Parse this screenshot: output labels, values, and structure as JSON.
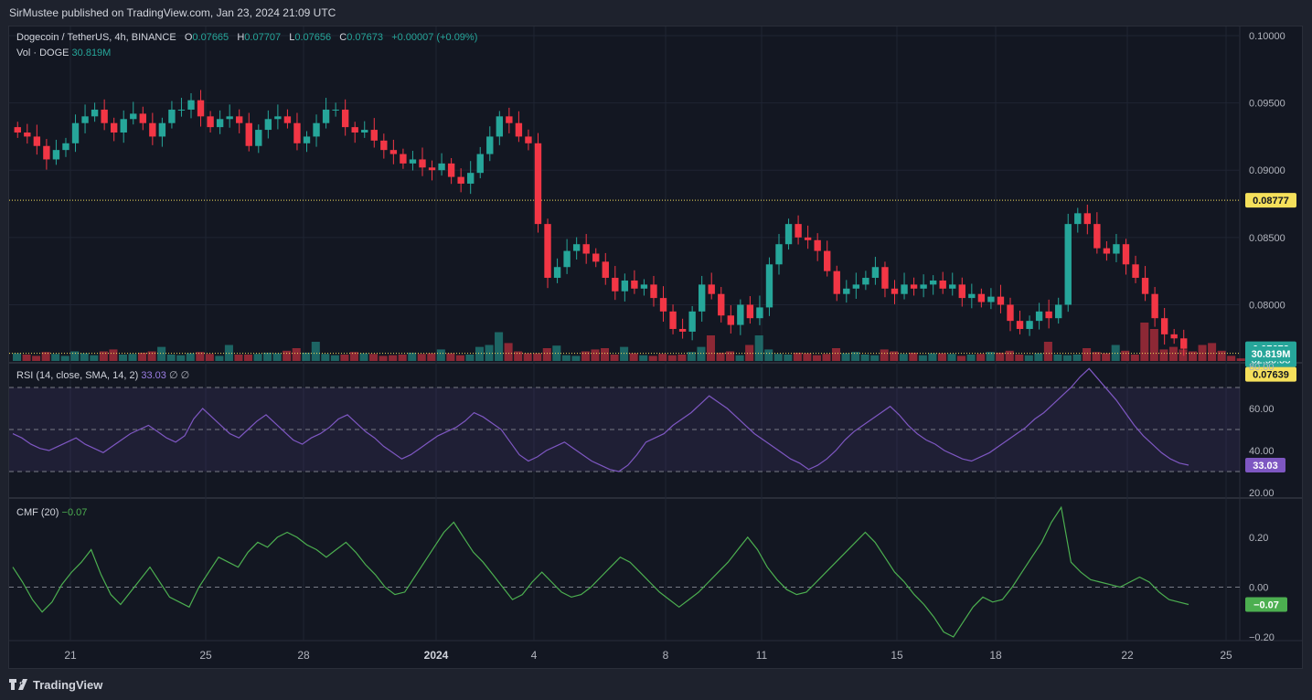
{
  "publisher": "SirMustee published on TradingView.com, Jan 23, 2024 21:09 UTC",
  "brand": "TradingView",
  "legend": {
    "symbol": "Dogecoin / TetherUS, 4h, BINANCE",
    "o_label": "O",
    "o": "0.07665",
    "h_label": "H",
    "h": "0.07707",
    "l_label": "L",
    "l": "0.07656",
    "c_label": "C",
    "c": "0.07673",
    "change": "+0.00007 (+0.09%)",
    "vol_label": "Vol · DOGE",
    "vol": "30.819M",
    "rsi_label": "RSI (14, close, SMA, 14, 2)",
    "rsi_value": "33.03",
    "rsi_extra": "∅ ∅",
    "cmf_label": "CMF (20)",
    "cmf_value": "−0.07"
  },
  "colors": {
    "up": "#26a69a",
    "down": "#f23645",
    "rsi": "#7e57c2",
    "cmf": "#4caf50",
    "level": "#f5e05b",
    "grid": "#1f2433",
    "text": "#b2b5be"
  },
  "chart_data": [
    {
      "type": "candlestick",
      "title": "Dogecoin / TetherUS, 4h, BINANCE",
      "x_tick_labels": [
        "21",
        "25",
        "28",
        "2024",
        "4",
        "8",
        "11",
        "15",
        "18",
        "22",
        "25"
      ],
      "y_ticks": [
        "0.10000",
        "0.09500",
        "0.09000",
        "0.08500",
        "0.08000"
      ],
      "ylim": [
        0.0765,
        0.1
      ],
      "horizontal_levels": [
        0.08777,
        0.07639
      ],
      "price_labels": {
        "resistance": "0.08777",
        "last": "0.07673",
        "countdown": "02:50:33",
        "support": "0.07639"
      },
      "close_path": [
        0.0928,
        0.0925,
        0.0918,
        0.0908,
        0.0915,
        0.092,
        0.0935,
        0.094,
        0.0945,
        0.0935,
        0.0928,
        0.0938,
        0.0942,
        0.0935,
        0.0925,
        0.0935,
        0.0945,
        0.0945,
        0.0952,
        0.094,
        0.0932,
        0.0938,
        0.094,
        0.0935,
        0.0918,
        0.093,
        0.0938,
        0.094,
        0.0935,
        0.092,
        0.0925,
        0.0935,
        0.0945,
        0.0945,
        0.0932,
        0.0928,
        0.093,
        0.0922,
        0.0915,
        0.0912,
        0.0905,
        0.0908,
        0.0902,
        0.09,
        0.0905,
        0.0895,
        0.089,
        0.0898,
        0.0912,
        0.0925,
        0.094,
        0.0935,
        0.0925,
        0.092,
        0.086,
        0.082,
        0.0828,
        0.084,
        0.0845,
        0.0838,
        0.0832,
        0.082,
        0.081,
        0.0818,
        0.0812,
        0.0815,
        0.0805,
        0.0795,
        0.0782,
        0.078,
        0.0795,
        0.0815,
        0.0808,
        0.0792,
        0.0785,
        0.08,
        0.079,
        0.0798,
        0.083,
        0.0845,
        0.086,
        0.085,
        0.0848,
        0.084,
        0.0825,
        0.0808,
        0.0812,
        0.0815,
        0.082,
        0.0828,
        0.0812,
        0.0808,
        0.0815,
        0.0812,
        0.0815,
        0.0818,
        0.0812,
        0.0815,
        0.0805,
        0.0808,
        0.0802,
        0.0806,
        0.08,
        0.0788,
        0.0782,
        0.0788,
        0.0795,
        0.079,
        0.08,
        0.086,
        0.0868,
        0.086,
        0.0842,
        0.0838,
        0.0845,
        0.083,
        0.082,
        0.0808,
        0.079,
        0.0778,
        0.0775,
        0.07673
      ]
    },
    {
      "type": "bar",
      "title": "Vol · DOGE",
      "last_value_label": "30.819M",
      "values": [
        12,
        10,
        8,
        14,
        11,
        8,
        15,
        12,
        9,
        15,
        18,
        10,
        11,
        13,
        15,
        22,
        10,
        9,
        12,
        14,
        11,
        8,
        25,
        10,
        10,
        11,
        13,
        12,
        16,
        20,
        13,
        30,
        11,
        9,
        10,
        14,
        12,
        11,
        8,
        9,
        10,
        13,
        11,
        12,
        18,
        12,
        9,
        10,
        22,
        25,
        45,
        28,
        15,
        12,
        12,
        20,
        24,
        9,
        8,
        15,
        18,
        20,
        10,
        22,
        12,
        9,
        8,
        11,
        9,
        10,
        14,
        22,
        40,
        13,
        15,
        9,
        25,
        40,
        18,
        11,
        10,
        13,
        12,
        9,
        11,
        20,
        12,
        14,
        10,
        9,
        18,
        15,
        11,
        13,
        9,
        12,
        12,
        11,
        8,
        10,
        11,
        14,
        13,
        16,
        10,
        9,
        12,
        30,
        10,
        9,
        10,
        20,
        14,
        12,
        25,
        16,
        10,
        60,
        50,
        18,
        22,
        18,
        15,
        25,
        28,
        16,
        8,
        4
      ]
    },
    {
      "type": "line",
      "title": "RSI (14, close, SMA, 14, 2)",
      "y_ticks": [
        "80.00",
        "60.00",
        "40.00",
        "20.00"
      ],
      "ylim": [
        20,
        80
      ],
      "bands": [
        70,
        50,
        30
      ],
      "last_value_label": "33.03",
      "values": [
        48,
        46,
        43,
        41,
        40,
        42,
        44,
        46,
        43,
        41,
        39,
        42,
        45,
        48,
        50,
        52,
        49,
        46,
        44,
        47,
        55,
        60,
        56,
        52,
        48,
        46,
        50,
        54,
        57,
        53,
        49,
        45,
        43,
        46,
        48,
        51,
        55,
        57,
        53,
        49,
        46,
        42,
        39,
        36,
        38,
        41,
        44,
        47,
        49,
        51,
        54,
        58,
        56,
        53,
        50,
        44,
        38,
        35,
        37,
        40,
        42,
        44,
        41,
        38,
        35,
        33,
        31,
        30,
        33,
        38,
        44,
        46,
        48,
        52,
        55,
        58,
        62,
        66,
        63,
        60,
        56,
        52,
        48,
        45,
        42,
        39,
        36,
        34,
        31,
        33,
        36,
        40,
        45,
        49,
        52,
        55,
        58,
        61,
        57,
        52,
        48,
        45,
        43,
        40,
        38,
        36,
        35,
        37,
        39,
        42,
        45,
        48,
        51,
        55,
        58,
        62,
        66,
        70,
        75,
        79,
        74,
        69,
        64,
        58,
        52,
        47,
        43,
        39,
        36,
        34,
        33.03
      ]
    },
    {
      "type": "line",
      "title": "CMF (20)",
      "y_ticks": [
        "0.20",
        "0.00",
        "−0.20"
      ],
      "ylim": [
        -0.2,
        0.35
      ],
      "last_value_label": "−0.07",
      "values": [
        0.08,
        0.02,
        -0.05,
        -0.1,
        -0.06,
        0.01,
        0.06,
        0.1,
        0.15,
        0.05,
        -0.03,
        -0.07,
        -0.02,
        0.03,
        0.08,
        0.02,
        -0.04,
        -0.06,
        -0.08,
        0.0,
        0.06,
        0.12,
        0.1,
        0.08,
        0.14,
        0.18,
        0.16,
        0.2,
        0.22,
        0.2,
        0.17,
        0.15,
        0.12,
        0.15,
        0.18,
        0.14,
        0.09,
        0.05,
        0.0,
        -0.03,
        -0.02,
        0.04,
        0.1,
        0.16,
        0.22,
        0.26,
        0.2,
        0.14,
        0.1,
        0.05,
        0.0,
        -0.05,
        -0.03,
        0.02,
        0.06,
        0.02,
        -0.02,
        -0.04,
        -0.03,
        0.0,
        0.04,
        0.08,
        0.12,
        0.1,
        0.06,
        0.02,
        -0.02,
        -0.05,
        -0.08,
        -0.05,
        -0.02,
        0.02,
        0.06,
        0.1,
        0.15,
        0.2,
        0.15,
        0.08,
        0.03,
        -0.01,
        -0.03,
        -0.02,
        0.02,
        0.06,
        0.1,
        0.14,
        0.18,
        0.22,
        0.18,
        0.12,
        0.06,
        0.02,
        -0.03,
        -0.07,
        -0.12,
        -0.18,
        -0.2,
        -0.14,
        -0.08,
        -0.04,
        -0.06,
        -0.05,
        0.0,
        0.06,
        0.12,
        0.18,
        0.26,
        0.32,
        0.1,
        0.06,
        0.03,
        0.02,
        0.01,
        0.0,
        0.02,
        0.04,
        0.02,
        -0.02,
        -0.05,
        -0.06,
        -0.07
      ]
    }
  ]
}
